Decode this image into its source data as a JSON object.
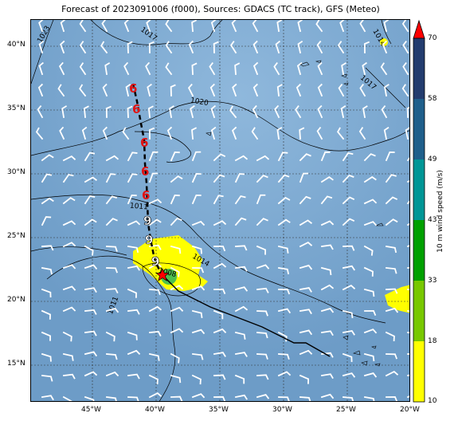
{
  "title": "Forecast of 2023091006 (f000), Sources: GDACS (TC track), GFS (Meteo)",
  "map": {
    "x_ticks": [
      "45°W",
      "40°W",
      "35°W",
      "30°W",
      "25°W",
      "20°W"
    ],
    "y_ticks": [
      "40°N",
      "35°N",
      "30°N",
      "25°N",
      "20°N",
      "15°N"
    ],
    "contour_labels": [
      "1023",
      "1017",
      "1020",
      "1017",
      "1014",
      "1011",
      "1014",
      "1008",
      "1011"
    ],
    "colors": {
      "ocean": "#7aa7cf",
      "land": "#7aa7cf",
      "wind_core": "#ffff00",
      "track_past": "#000000",
      "storm_marker": "#ff0000"
    }
  },
  "colorbar": {
    "label": "10 m wind speed (m/s)",
    "ticks": [
      "10",
      "18",
      "33",
      "43",
      "49",
      "58",
      "70"
    ],
    "colors": [
      "#ffff00",
      "#78c800",
      "#00a000",
      "#009696",
      "#1f5f8b",
      "#233c6e",
      "#ff0000"
    ]
  },
  "legend_symbols": [
    "tropical-storm-symbol",
    "hurricane-symbol",
    "current-position-star"
  ]
}
